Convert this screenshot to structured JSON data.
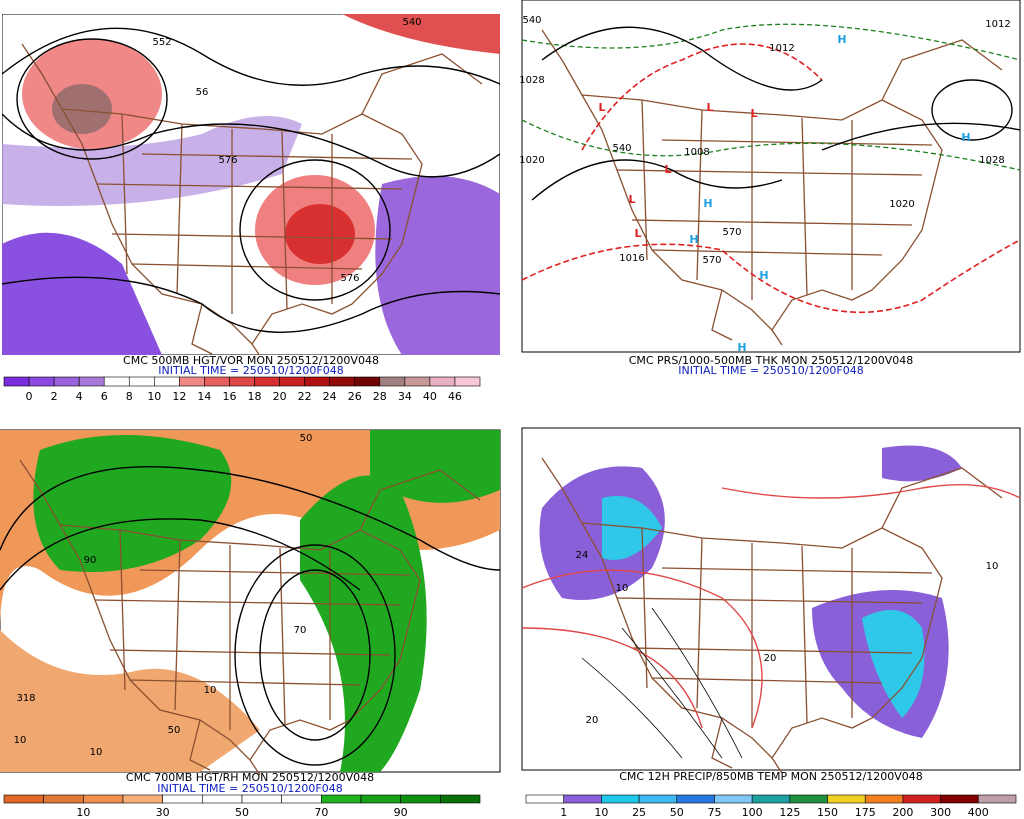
{
  "panels": [
    {
      "title": "CMC 500MB HGT/VOR MON 250512/1200V048",
      "init": "INITIAL TIME = 250510/1200F048",
      "colorbar": {
        "labels": [
          "0",
          "2",
          "4",
          "6",
          "8",
          "10",
          "12",
          "14",
          "16",
          "18",
          "20",
          "22",
          "24",
          "26",
          "28",
          "34",
          "40",
          "46"
        ],
        "colors": [
          "#7a2ee0",
          "#8c48e0",
          "#9a62dc",
          "#a87ad8",
          "#ffffff",
          "#ffffff",
          "#ffffff",
          "#f08888",
          "#e86060",
          "#e04848",
          "#d83030",
          "#c82020",
          "#b01010",
          "#900808",
          "#700404",
          "#a08080",
          "#c89898",
          "#e8b0c0",
          "#f8c8d8"
        ]
      },
      "labels": [
        "552",
        "56",
        "576",
        "576",
        "540"
      ]
    },
    {
      "title": "CMC PRS/1000-500MB THK MON 250512/1200V048",
      "init": "INITIAL TIME = 250510/1200F048",
      "labels": [
        "1012",
        "1020",
        "1028",
        "1028",
        "1020",
        "1008",
        "1012",
        "1016",
        "540",
        "570",
        "570",
        "540"
      ],
      "symbols": [
        "L",
        "L",
        "L",
        "L",
        "L",
        "L",
        "H",
        "H",
        "H",
        "H",
        "H",
        "H"
      ]
    },
    {
      "title": "CMC 700MB HGT/RH MON 250512/1200V048",
      "init": "INITIAL TIME = 250510/1200F048",
      "colorbar": {
        "labels": [
          "10",
          "30",
          "50",
          "70",
          "90"
        ],
        "colors": [
          "#e06828",
          "#e07838",
          "#f09050",
          "#f8b078",
          "#ffffff",
          "#ffffff",
          "#ffffff",
          "#ffffff",
          "#20b020",
          "#18a018",
          "#109010",
          "#087008"
        ]
      },
      "labels": [
        "50",
        "318",
        "10",
        "10",
        "50",
        "90",
        "70",
        "10"
      ]
    },
    {
      "title": "CMC 12H PRECIP/850MB TEMP MON 250512/1200V048",
      "colorbar": {
        "labels": [
          "1",
          "10",
          "25",
          "50",
          "75",
          "100",
          "125",
          "150",
          "175",
          "200",
          "300",
          "400"
        ],
        "colors": [
          "#ffffff",
          "#8a60d8",
          "#20c8e8",
          "#40b8f0",
          "#2878e0",
          "#80c8f8",
          "#20a0a0",
          "#209040",
          "#f0d020",
          "#f08020",
          "#d02020",
          "#800000",
          "#c0a0a8"
        ]
      },
      "labels": [
        "24",
        "20",
        "10",
        "20",
        "10"
      ]
    }
  ]
}
